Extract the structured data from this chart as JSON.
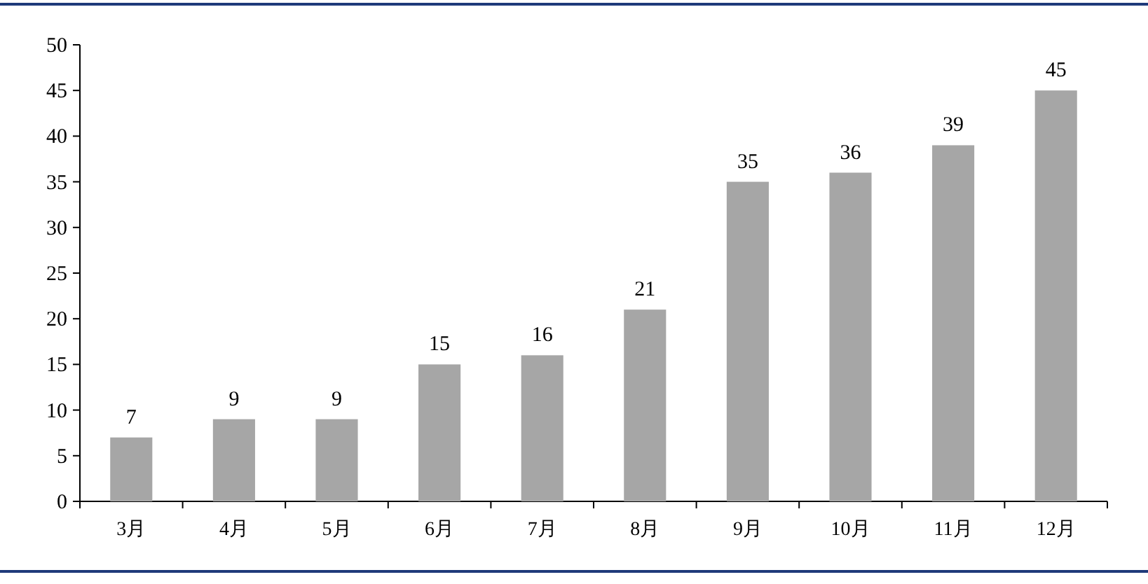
{
  "chart_data": {
    "type": "bar",
    "categories": [
      "3月",
      "4月",
      "5月",
      "6月",
      "7月",
      "8月",
      "9月",
      "10月",
      "11月",
      "12月"
    ],
    "values": [
      7,
      9,
      9,
      15,
      16,
      21,
      35,
      36,
      39,
      45
    ],
    "color": "#a6a6a6",
    "ylim": [
      0,
      50
    ],
    "yticks": [
      0,
      5,
      10,
      15,
      20,
      25,
      30,
      35,
      40,
      45,
      50
    ],
    "data_labels": true,
    "grid": false
  }
}
